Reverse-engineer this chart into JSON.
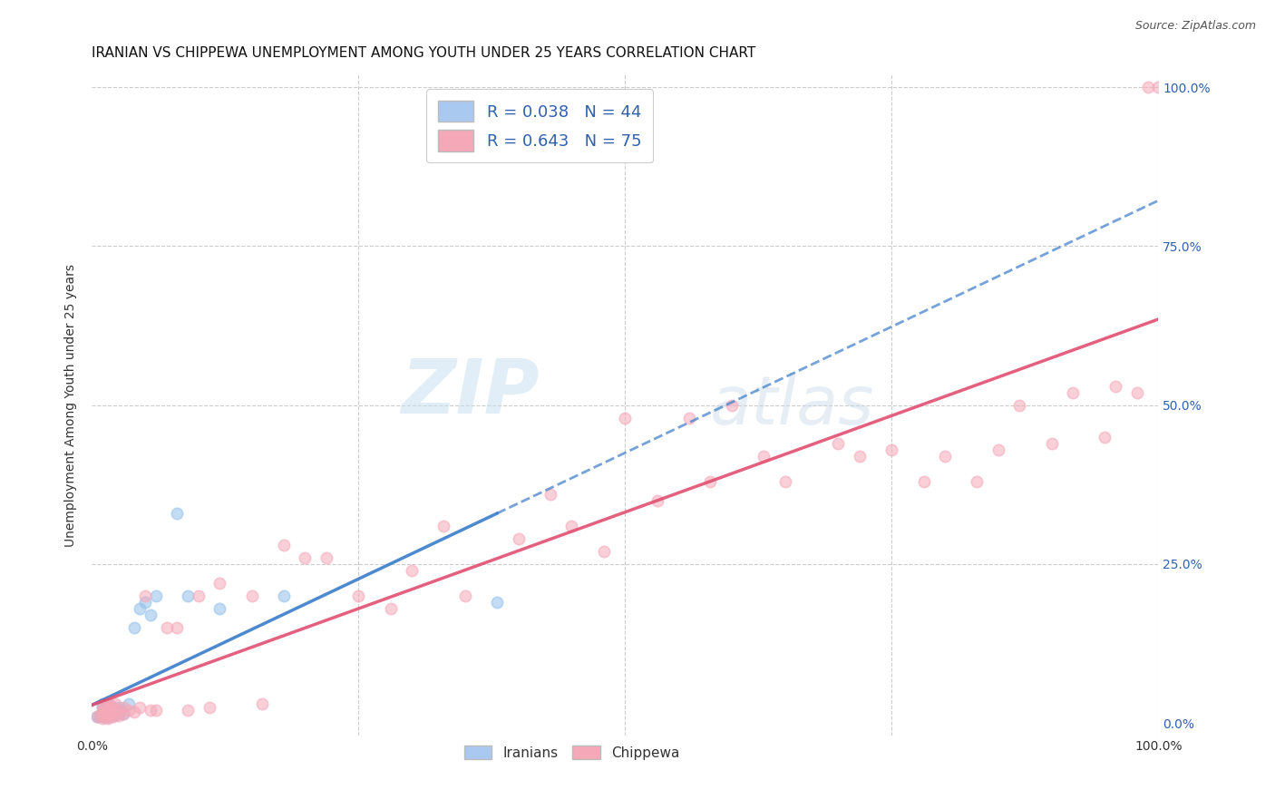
{
  "title": "IRANIAN VS CHIPPEWA UNEMPLOYMENT AMONG YOUTH UNDER 25 YEARS CORRELATION CHART",
  "source": "Source: ZipAtlas.com",
  "ylabel": "Unemployment Among Youth under 25 years",
  "xlim": [
    0,
    1.0
  ],
  "ylim": [
    -0.02,
    1.02
  ],
  "legend_label1": "R = 0.038   N = 44",
  "legend_label2": "R = 0.643   N = 75",
  "legend_color1": "#aac9f0",
  "legend_color2": "#f5a8b8",
  "watermark_zip": "ZIP",
  "watermark_atlas": "atlas",
  "iranian_dot_color": "#92c0ea",
  "chippewa_dot_color": "#f5a8b8",
  "iranian_line_color": "#3a7cc9",
  "chippewa_line_color": "#e05070",
  "bg_color": "#ffffff",
  "grid_color": "#cccccc",
  "title_fontsize": 11,
  "legend_title_color": "#3060b0",
  "right_tick_color": "#3060b0",
  "iranians_x": [
    0.005,
    0.007,
    0.008,
    0.01,
    0.01,
    0.01,
    0.01,
    0.012,
    0.012,
    0.013,
    0.013,
    0.013,
    0.015,
    0.015,
    0.015,
    0.015,
    0.015,
    0.016,
    0.016,
    0.017,
    0.018,
    0.018,
    0.018,
    0.02,
    0.02,
    0.021,
    0.022,
    0.023,
    0.024,
    0.025,
    0.025,
    0.027,
    0.03,
    0.035,
    0.04,
    0.045,
    0.05,
    0.055,
    0.06,
    0.08,
    0.09,
    0.12,
    0.18,
    0.38
  ],
  "iranians_y": [
    0.01,
    0.01,
    0.012,
    0.01,
    0.018,
    0.025,
    0.03,
    0.01,
    0.015,
    0.01,
    0.012,
    0.02,
    0.01,
    0.015,
    0.02,
    0.025,
    0.03,
    0.01,
    0.015,
    0.012,
    0.012,
    0.015,
    0.025,
    0.012,
    0.02,
    0.015,
    0.015,
    0.018,
    0.02,
    0.015,
    0.025,
    0.02,
    0.015,
    0.03,
    0.15,
    0.18,
    0.19,
    0.17,
    0.2,
    0.33,
    0.2,
    0.18,
    0.2,
    0.19
  ],
  "chippewa_x": [
    0.005,
    0.008,
    0.01,
    0.01,
    0.01,
    0.012,
    0.012,
    0.012,
    0.013,
    0.015,
    0.015,
    0.015,
    0.015,
    0.016,
    0.016,
    0.017,
    0.017,
    0.018,
    0.018,
    0.02,
    0.02,
    0.022,
    0.022,
    0.025,
    0.025,
    0.03,
    0.03,
    0.035,
    0.04,
    0.045,
    0.05,
    0.055,
    0.06,
    0.07,
    0.08,
    0.09,
    0.1,
    0.11,
    0.12,
    0.15,
    0.16,
    0.18,
    0.2,
    0.22,
    0.25,
    0.28,
    0.3,
    0.33,
    0.35,
    0.4,
    0.43,
    0.45,
    0.48,
    0.5,
    0.53,
    0.56,
    0.58,
    0.6,
    0.63,
    0.65,
    0.7,
    0.72,
    0.75,
    0.78,
    0.8,
    0.83,
    0.85,
    0.87,
    0.9,
    0.92,
    0.95,
    0.96,
    0.98,
    0.99,
    1.0
  ],
  "chippewa_y": [
    0.01,
    0.012,
    0.008,
    0.018,
    0.025,
    0.01,
    0.018,
    0.025,
    0.015,
    0.008,
    0.015,
    0.02,
    0.03,
    0.01,
    0.02,
    0.012,
    0.025,
    0.018,
    0.028,
    0.01,
    0.025,
    0.015,
    0.03,
    0.012,
    0.02,
    0.015,
    0.025,
    0.02,
    0.018,
    0.025,
    0.2,
    0.02,
    0.02,
    0.15,
    0.15,
    0.02,
    0.2,
    0.025,
    0.22,
    0.2,
    0.03,
    0.28,
    0.26,
    0.26,
    0.2,
    0.18,
    0.24,
    0.31,
    0.2,
    0.29,
    0.36,
    0.31,
    0.27,
    0.48,
    0.35,
    0.48,
    0.38,
    0.5,
    0.42,
    0.38,
    0.44,
    0.42,
    0.43,
    0.38,
    0.42,
    0.38,
    0.43,
    0.5,
    0.44,
    0.52,
    0.45,
    0.53,
    0.52,
    1.0,
    1.0
  ],
  "dot_size": 80
}
